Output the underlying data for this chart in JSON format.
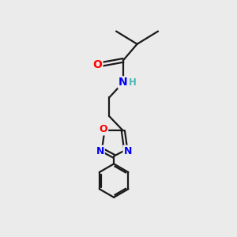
{
  "bg_color": "#ebebeb",
  "bond_color": "#1a1a1a",
  "bond_width": 1.6,
  "atom_colors": {
    "O": "#ff0000",
    "N": "#0000ff",
    "H": "#4db8b8",
    "C": "#1a1a1a"
  },
  "font_size_atom": 10,
  "font_size_h": 8.5,
  "xlim": [
    0,
    10
  ],
  "ylim": [
    0,
    10
  ]
}
